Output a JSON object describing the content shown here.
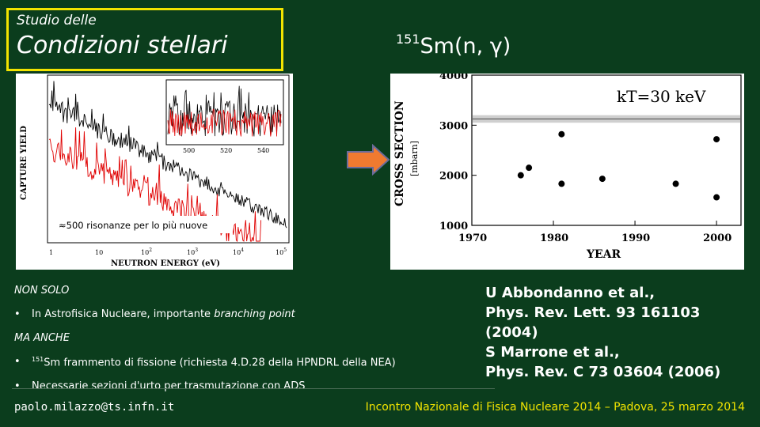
{
  "header": {
    "title_small": "Studio delle",
    "title_big": "Condizioni stellari",
    "reaction_mass": "151",
    "reaction_rest": "Sm(n, γ)"
  },
  "left_plot": {
    "ylabel": "CAPTURE YIELD",
    "xlabel": "NEUTRON ENERGY (eV)",
    "inset_ticks": [
      "500",
      "520",
      "540"
    ],
    "annotation": "≈500 risonanze per lo più nuove",
    "tick_x": [
      "1",
      "10",
      "10",
      "10",
      "10",
      "10"
    ],
    "tick_x_exp": [
      "",
      "",
      "2",
      "3",
      "4",
      "5"
    ],
    "colors": {
      "data": "#000000",
      "fit": "#e00000"
    }
  },
  "body": {
    "hdr1": "NON SOLO",
    "bullet1": "In Astrofisica Nucleare, importante",
    "bullet1_it": "branching point",
    "hdr2": "MA ANCHE",
    "bullet2_mass": "151",
    "bullet2": "Sm frammento di fissione (richiesta 4.D.28 della HPNDRL della NEA)",
    "bullet3": "Necessarie sezioni d'urto per trasmutazione con ADS",
    "bullet_mark": "•"
  },
  "refs": {
    "line1": "U Abbondanno et al.,",
    "line2": "Phys. Rev. Lett. 93 161103 (2004)",
    "line3": "S Marrone et al.,",
    "line4": "Phys. Rev. C 73 03604 (2006)"
  },
  "footer": {
    "email": "paolo.milazzo@ts.infn.it",
    "conference": "Incontro Nazionale di Fisica Nucleare 2014 – Padova, 25 marzo 2014"
  },
  "chart_data": {
    "type": "scatter",
    "title": "kT=30 keV",
    "xlabel": "YEAR",
    "ylabel": "CROSS SECTION",
    "ylabel_unit": "[mbarn]",
    "xlim": [
      1970,
      2003
    ],
    "ylim": [
      1000,
      4000
    ],
    "x_ticks": [
      1970,
      1980,
      1990,
      2000
    ],
    "y_ticks": [
      1000,
      2000,
      3000,
      4000
    ],
    "band": [
      3050,
      3200
    ],
    "points": [
      {
        "x": 1976,
        "y": 2000
      },
      {
        "x": 1977,
        "y": 2150
      },
      {
        "x": 1981,
        "y": 2820
      },
      {
        "x": 1981,
        "y": 1830
      },
      {
        "x": 1986,
        "y": 1930
      },
      {
        "x": 1995,
        "y": 1830
      },
      {
        "x": 2000,
        "y": 2720
      },
      {
        "x": 2000,
        "y": 1560
      }
    ]
  }
}
